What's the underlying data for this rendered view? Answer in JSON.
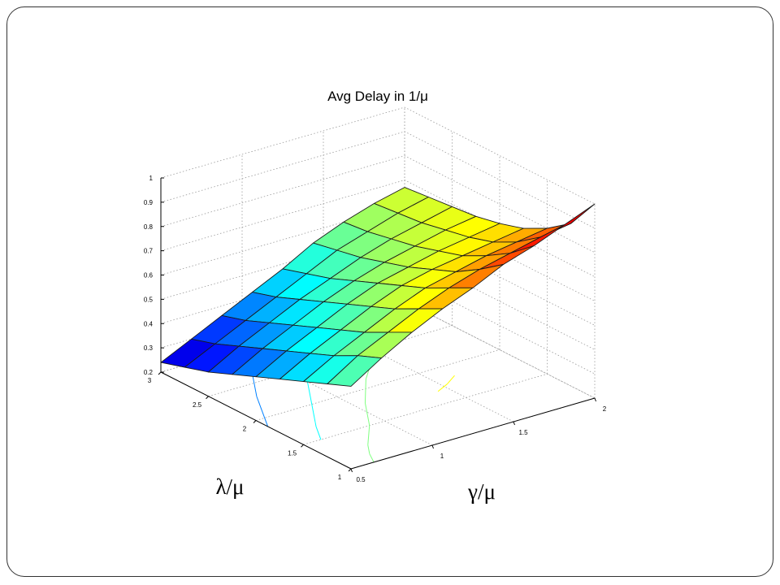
{
  "slide": {
    "border_color": "#333333"
  },
  "chart_data": {
    "type": "surface",
    "title": "Avg Delay in 1/μ",
    "xlabel": "γ/μ",
    "ylabel": "λ/μ",
    "zlabel": "",
    "x_ticks": [
      "0.5",
      "1",
      "1.5",
      "2"
    ],
    "y_ticks": [
      "1",
      "1.5",
      "2",
      "2.5",
      "3"
    ],
    "z_ticks": [
      "0.2",
      "0.3",
      "0.4",
      "0.5",
      "0.6",
      "0.7",
      "0.8",
      "0.9",
      "1"
    ],
    "xlim": [
      0.5,
      2
    ],
    "ylim": [
      1,
      3
    ],
    "zlim": [
      0.2,
      1
    ],
    "grid": true,
    "colormap": "jet",
    "contour_on_floor": true,
    "x": [
      0.5,
      0.6875,
      0.875,
      1.0625,
      1.25,
      1.4375,
      1.625,
      1.8125,
      2.0
    ],
    "y": [
      1.0,
      1.25,
      1.5,
      1.75,
      2.0,
      2.25,
      2.5,
      2.75,
      3.0
    ],
    "z": [
      [
        0.54,
        0.62,
        0.69,
        0.75,
        0.8,
        0.86,
        0.9,
        0.95,
        1.0
      ],
      [
        0.5,
        0.58,
        0.64,
        0.7,
        0.75,
        0.79,
        0.82,
        0.85,
        0.87
      ],
      [
        0.46,
        0.53,
        0.59,
        0.65,
        0.7,
        0.73,
        0.76,
        0.78,
        0.8
      ],
      [
        0.42,
        0.49,
        0.55,
        0.61,
        0.66,
        0.69,
        0.71,
        0.73,
        0.75
      ],
      [
        0.38,
        0.45,
        0.51,
        0.57,
        0.62,
        0.65,
        0.68,
        0.7,
        0.72
      ],
      [
        0.34,
        0.41,
        0.47,
        0.53,
        0.58,
        0.62,
        0.65,
        0.68,
        0.7
      ],
      [
        0.3,
        0.37,
        0.43,
        0.49,
        0.54,
        0.59,
        0.63,
        0.66,
        0.69
      ],
      [
        0.27,
        0.33,
        0.39,
        0.45,
        0.51,
        0.57,
        0.61,
        0.65,
        0.68
      ],
      [
        0.24,
        0.3,
        0.36,
        0.42,
        0.48,
        0.55,
        0.6,
        0.64,
        0.67
      ]
    ],
    "floor_contour_levels": [
      0.3,
      0.4,
      0.5,
      0.6,
      0.7
    ]
  }
}
